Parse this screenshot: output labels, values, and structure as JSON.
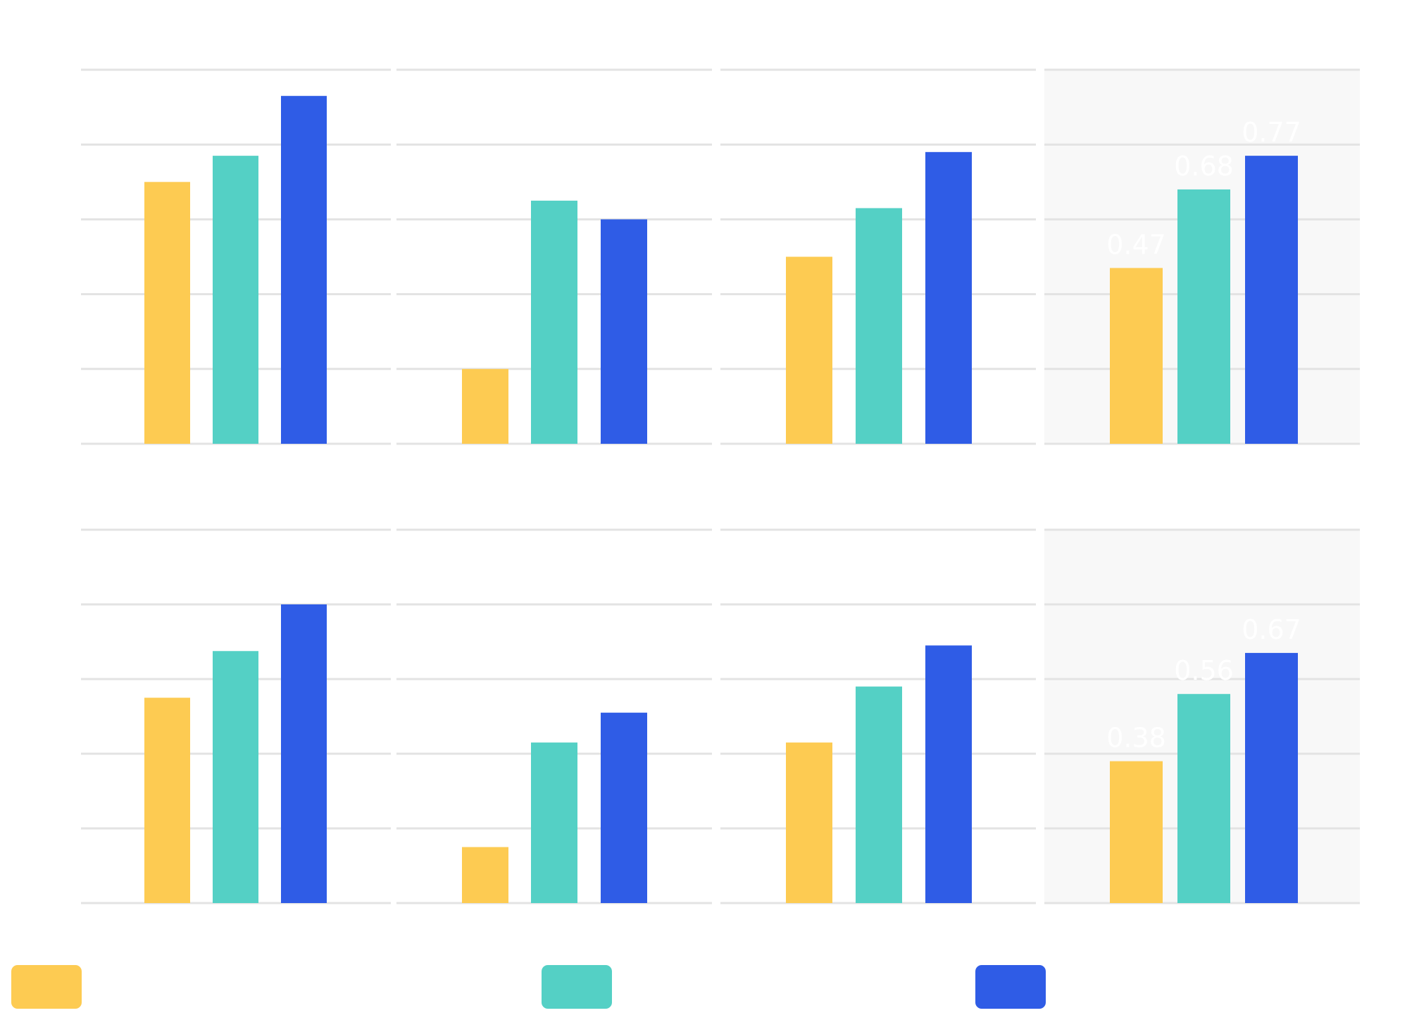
{
  "colors": {
    "series_1": "#fdcb52",
    "series_2": "#54d0c5",
    "series_3": "#2f5ce6",
    "highlight_panel_bg": "#f8f8f8",
    "grid": "#e3e3e3"
  },
  "chart_data": [
    {
      "type": "bar",
      "row": 1,
      "panel": 1,
      "ylim": [
        0,
        1
      ],
      "grid": true,
      "series": [
        {
          "values": [
            0.7
          ]
        },
        {
          "values": [
            0.77
          ]
        },
        {
          "values": [
            0.93
          ]
        }
      ],
      "data_labels": [
        "",
        "",
        ""
      ]
    },
    {
      "type": "bar",
      "row": 1,
      "panel": 2,
      "ylim": [
        0,
        1
      ],
      "grid": true,
      "series": [
        {
          "values": [
            0.2
          ]
        },
        {
          "values": [
            0.65
          ]
        },
        {
          "values": [
            0.6
          ]
        }
      ],
      "data_labels": [
        "",
        "",
        ""
      ]
    },
    {
      "type": "bar",
      "row": 1,
      "panel": 3,
      "ylim": [
        0,
        1
      ],
      "grid": true,
      "series": [
        {
          "values": [
            0.5
          ]
        },
        {
          "values": [
            0.63
          ]
        },
        {
          "values": [
            0.78
          ]
        }
      ],
      "data_labels": [
        "",
        "",
        ""
      ]
    },
    {
      "type": "bar",
      "row": 1,
      "panel": 4,
      "ylim": [
        0,
        1
      ],
      "grid": true,
      "highlighted": true,
      "series": [
        {
          "values": [
            0.47
          ]
        },
        {
          "values": [
            0.68
          ]
        },
        {
          "values": [
            0.77
          ]
        }
      ],
      "data_labels": [
        "0.47",
        "0.68",
        "0.77"
      ]
    },
    {
      "type": "bar",
      "row": 2,
      "panel": 1,
      "ylim": [
        0,
        1
      ],
      "grid": true,
      "series": [
        {
          "values": [
            0.55
          ]
        },
        {
          "values": [
            0.675
          ]
        },
        {
          "values": [
            0.8
          ]
        }
      ],
      "data_labels": [
        "",
        "",
        ""
      ]
    },
    {
      "type": "bar",
      "row": 2,
      "panel": 2,
      "ylim": [
        0,
        1
      ],
      "grid": true,
      "series": [
        {
          "values": [
            0.15
          ]
        },
        {
          "values": [
            0.43
          ]
        },
        {
          "values": [
            0.51
          ]
        }
      ],
      "data_labels": [
        "",
        "",
        ""
      ]
    },
    {
      "type": "bar",
      "row": 2,
      "panel": 3,
      "ylim": [
        0,
        1
      ],
      "grid": true,
      "series": [
        {
          "values": [
            0.43
          ]
        },
        {
          "values": [
            0.58
          ]
        },
        {
          "values": [
            0.69
          ]
        }
      ],
      "data_labels": [
        "",
        "",
        ""
      ]
    },
    {
      "type": "bar",
      "row": 2,
      "panel": 4,
      "ylim": [
        0,
        1
      ],
      "grid": true,
      "highlighted": true,
      "series": [
        {
          "values": [
            0.38
          ]
        },
        {
          "values": [
            0.56
          ]
        },
        {
          "values": [
            0.67
          ]
        }
      ],
      "data_labels": [
        "0.38",
        "0.56",
        "0.67"
      ]
    }
  ],
  "legend": {
    "placement": "bottom",
    "items": [
      {
        "color": "#fdcb52",
        "label": ""
      },
      {
        "color": "#54d0c5",
        "label": ""
      },
      {
        "color": "#2f5ce6",
        "label": ""
      }
    ]
  }
}
